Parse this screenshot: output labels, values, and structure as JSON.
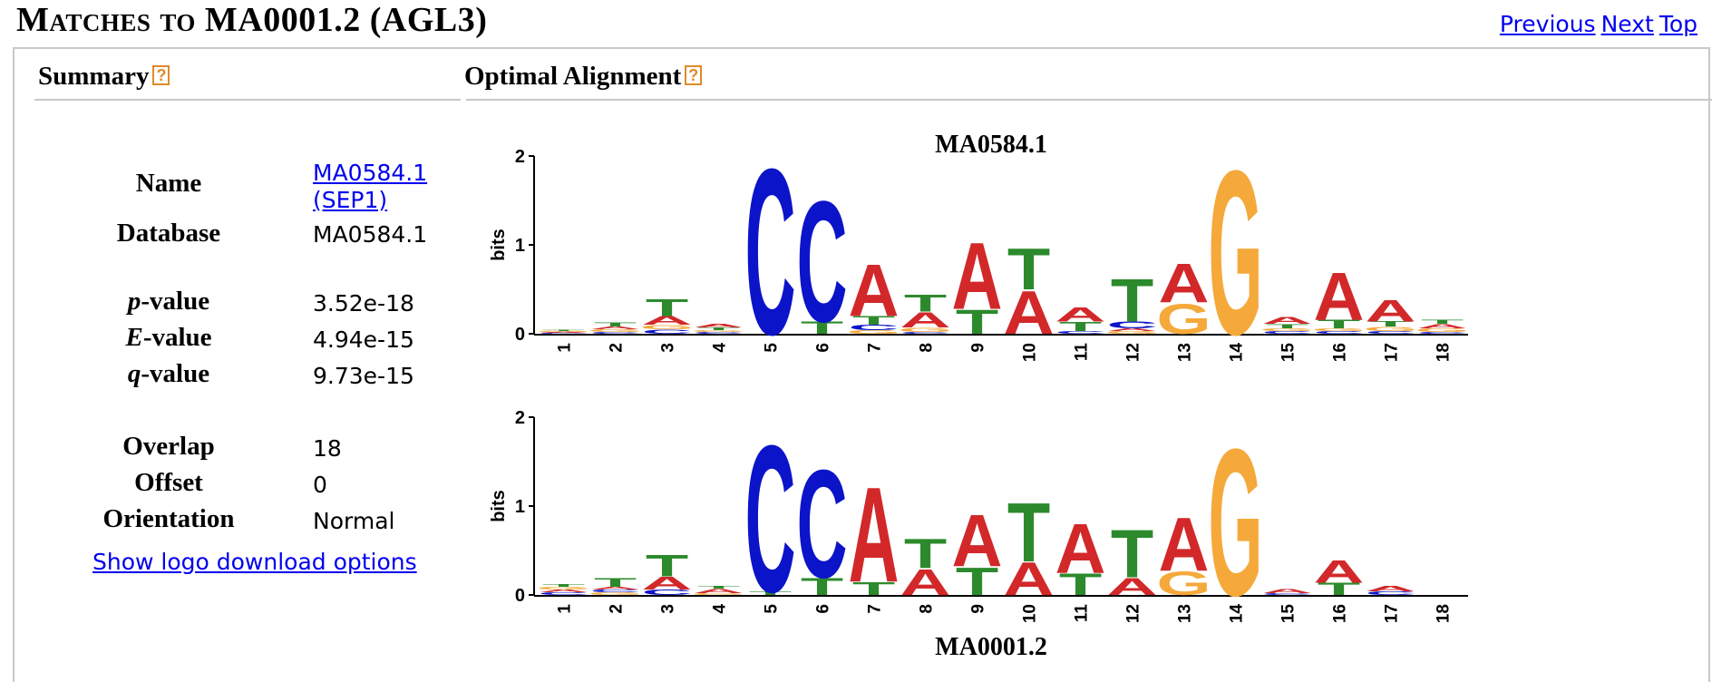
{
  "page": {
    "title": "Matches to MA0001.2 (AGL3)",
    "nav": [
      "Previous",
      "Next",
      "Top"
    ]
  },
  "summary": {
    "heading": "Summary",
    "help_glyph": "?",
    "name_label": "Name",
    "name_value": "MA0584.1 (SEP1)",
    "database_label": "Database",
    "database_value": "MA0584.1",
    "pvalue_label_prefix": "p",
    "pvalue_label_suffix": "-value",
    "pvalue": "3.52e-18",
    "evalue_label_prefix": "E",
    "evalue_label_suffix": "-value",
    "evalue": "4.94e-15",
    "qvalue_label_prefix": "q",
    "qvalue_label_suffix": "-value",
    "qvalue": "9.73e-15",
    "overlap_label": "Overlap",
    "overlap": "18",
    "offset_label": "Offset",
    "offset": "0",
    "orientation_label": "Orientation",
    "orientation": "Normal",
    "download_link": "Show logo download options"
  },
  "alignment": {
    "heading": "Optimal Alignment",
    "help_glyph": "?",
    "y_label": "bits",
    "y_ticks": [
      "0",
      "1",
      "2"
    ],
    "colors": {
      "A": "#d2282a",
      "C": "#0b14c8",
      "G": "#f5a93a",
      "T": "#2c8a2c"
    },
    "top_logo": {
      "title": "MA0584.1",
      "positions": [
        "1",
        "2",
        "3",
        "4",
        "5",
        "6",
        "7",
        "8",
        "9",
        "10",
        "11",
        "12",
        "13",
        "14",
        "15",
        "16",
        "17",
        "18"
      ],
      "letters": [
        [
          [
            "C",
            0.01
          ],
          [
            "A",
            0.01
          ],
          [
            "G",
            0.01
          ],
          [
            "T",
            0.01
          ]
        ],
        [
          [
            "C",
            0.02
          ],
          [
            "G",
            0.03
          ],
          [
            "A",
            0.03
          ],
          [
            "T",
            0.05
          ]
        ],
        [
          [
            "C",
            0.05
          ],
          [
            "G",
            0.05
          ],
          [
            "A",
            0.1
          ],
          [
            "T",
            0.2
          ]
        ],
        [
          [
            "C",
            0.02
          ],
          [
            "G",
            0.02
          ],
          [
            "T",
            0.03
          ],
          [
            "A",
            0.04
          ]
        ],
        [
          [
            "C",
            1.92
          ]
        ],
        [
          [
            "T",
            0.14
          ],
          [
            "C",
            1.4
          ]
        ],
        [
          [
            "G",
            0.04
          ],
          [
            "C",
            0.06
          ],
          [
            "T",
            0.1
          ],
          [
            "A",
            0.6
          ]
        ],
        [
          [
            "C",
            0.02
          ],
          [
            "G",
            0.05
          ],
          [
            "A",
            0.18
          ],
          [
            "T",
            0.2
          ]
        ],
        [
          [
            "T",
            0.28
          ],
          [
            "A",
            0.77
          ]
        ],
        [
          [
            "A",
            0.5
          ],
          [
            "T",
            0.48
          ]
        ],
        [
          [
            "C",
            0.03
          ],
          [
            "T",
            0.11
          ],
          [
            "A",
            0.16
          ]
        ],
        [
          [
            "G",
            0.03
          ],
          [
            "A",
            0.03
          ],
          [
            "C",
            0.08
          ],
          [
            "T",
            0.5
          ]
        ],
        [
          [
            "G",
            0.35
          ],
          [
            "A",
            0.45
          ]
        ],
        [
          [
            "G",
            1.9
          ]
        ],
        [
          [
            "C",
            0.03
          ],
          [
            "G",
            0.03
          ],
          [
            "T",
            0.05
          ],
          [
            "A",
            0.08
          ]
        ],
        [
          [
            "C",
            0.03
          ],
          [
            "G",
            0.03
          ],
          [
            "T",
            0.1
          ],
          [
            "A",
            0.55
          ]
        ],
        [
          [
            "C",
            0.03
          ],
          [
            "G",
            0.05
          ],
          [
            "T",
            0.06
          ],
          [
            "A",
            0.25
          ]
        ],
        [
          [
            "C",
            0.02
          ],
          [
            "G",
            0.04
          ],
          [
            "A",
            0.05
          ],
          [
            "T",
            0.05
          ]
        ]
      ]
    },
    "bottom_logo": {
      "title": "MA0001.2",
      "positions": [
        "1",
        "2",
        "3",
        "4",
        "5",
        "6",
        "7",
        "8",
        "9",
        "10",
        "11",
        "12",
        "13",
        "14",
        "15",
        "16",
        "17",
        "18"
      ],
      "letters": [
        [
          [
            "C",
            0.03
          ],
          [
            "A",
            0.03
          ],
          [
            "G",
            0.03
          ],
          [
            "T",
            0.03
          ]
        ],
        [
          [
            "G",
            0.03
          ],
          [
            "C",
            0.03
          ],
          [
            "A",
            0.03
          ],
          [
            "T",
            0.1
          ]
        ],
        [
          [
            "C",
            0.06
          ],
          [
            "A",
            0.15
          ],
          [
            "T",
            0.25
          ]
        ],
        [
          [
            "G",
            0.02
          ],
          [
            "A",
            0.05
          ],
          [
            "T",
            0.03
          ]
        ],
        [
          [
            "T",
            0.04
          ],
          [
            "C",
            1.7
          ]
        ],
        [
          [
            "T",
            0.2
          ],
          [
            "C",
            1.25
          ]
        ],
        [
          [
            "T",
            0.15
          ],
          [
            "A",
            1.1
          ]
        ],
        [
          [
            "A",
            0.3
          ],
          [
            "T",
            0.34
          ]
        ],
        [
          [
            "T",
            0.32
          ],
          [
            "A",
            0.6
          ]
        ],
        [
          [
            "A",
            0.38
          ],
          [
            "T",
            0.68
          ]
        ],
        [
          [
            "T",
            0.25
          ],
          [
            "A",
            0.57
          ]
        ],
        [
          [
            "A",
            0.2
          ],
          [
            "T",
            0.55
          ]
        ],
        [
          [
            "G",
            0.27
          ],
          [
            "A",
            0.62
          ]
        ],
        [
          [
            "G",
            1.7
          ]
        ],
        [
          [
            "C",
            0.02
          ],
          [
            "A",
            0.05
          ]
        ],
        [
          [
            "T",
            0.14
          ],
          [
            "A",
            0.26
          ]
        ],
        [
          [
            "C",
            0.04
          ],
          [
            "A",
            0.06
          ]
        ],
        []
      ]
    }
  }
}
